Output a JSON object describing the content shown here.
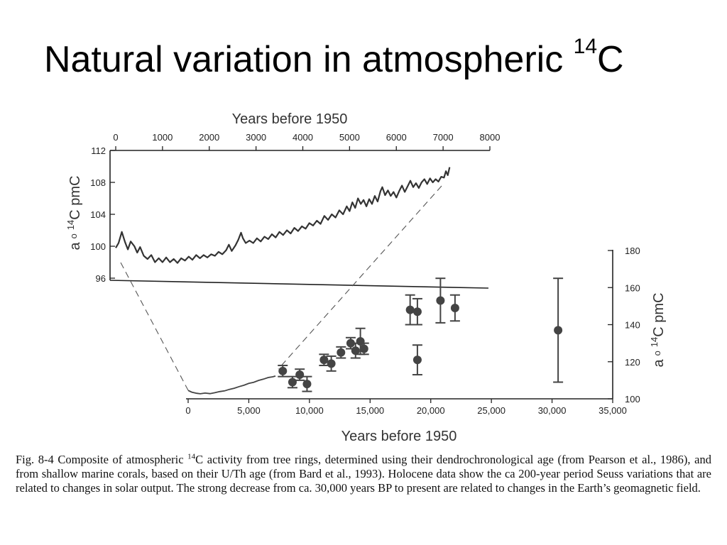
{
  "title": {
    "text": "Natural variation in atmospheric ",
    "sup": "14",
    "suffix": "C"
  },
  "caption": {
    "part1": "Fig. 8-4   Composite of atmospheric ",
    "sup": "14",
    "part2": "C activity from tree rings, determined using their dendrochronological age (from Pearson et al., 1986), and from shallow marine corals, based on their U/Th age (from Bard et al., 1993). Holocene data show the ca 200-year period Seuss variations that are related to changes in solar output. The strong decrease from ca. 30,000 years BP to present are related to changes in the Earth’s geomagnetic field."
  },
  "chart_data": [
    {
      "type": "line",
      "xlabel": "Years before 1950",
      "ylabel_parts": {
        "a": "a",
        "o": "o",
        "sup": "14",
        "rest": "C pmC"
      },
      "xlim": [
        0,
        8000
      ],
      "ylim": [
        96,
        112
      ],
      "x_ticks": [
        0,
        1000,
        2000,
        3000,
        4000,
        5000,
        6000,
        7000,
        8000
      ],
      "x_tick_labels": [
        "0",
        "1000",
        "2000",
        "3000",
        "4000",
        "5000",
        "6000",
        "7000",
        "8000"
      ],
      "y_ticks": [
        96,
        100,
        104,
        108,
        112
      ],
      "y_tick_labels": [
        "96",
        "100",
        "104",
        "108",
        "112"
      ],
      "series": [
        {
          "color": "#333333",
          "points": [
            [
              0,
              99.8
            ],
            [
              60,
              100.4
            ],
            [
              130,
              101.8
            ],
            [
              200,
              100.5
            ],
            [
              260,
              99.6
            ],
            [
              320,
              100.6
            ],
            [
              400,
              100.0
            ],
            [
              460,
              99.2
            ],
            [
              520,
              99.9
            ],
            [
              600,
              98.8
            ],
            [
              680,
              98.4
            ],
            [
              760,
              98.9
            ],
            [
              840,
              98.0
            ],
            [
              920,
              98.5
            ],
            [
              1000,
              98.0
            ],
            [
              1080,
              98.6
            ],
            [
              1160,
              98.0
            ],
            [
              1240,
              98.4
            ],
            [
              1320,
              97.9
            ],
            [
              1400,
              98.5
            ],
            [
              1480,
              98.2
            ],
            [
              1560,
              98.7
            ],
            [
              1640,
              98.3
            ],
            [
              1720,
              98.9
            ],
            [
              1800,
              98.5
            ],
            [
              1880,
              98.9
            ],
            [
              1960,
              98.6
            ],
            [
              2040,
              99.0
            ],
            [
              2120,
              98.8
            ],
            [
              2200,
              99.3
            ],
            [
              2280,
              99.0
            ],
            [
              2360,
              99.5
            ],
            [
              2420,
              100.2
            ],
            [
              2480,
              99.4
            ],
            [
              2560,
              100.1
            ],
            [
              2620,
              100.8
            ],
            [
              2680,
              101.7
            ],
            [
              2720,
              101.0
            ],
            [
              2780,
              100.4
            ],
            [
              2860,
              100.7
            ],
            [
              2940,
              100.4
            ],
            [
              3020,
              101.0
            ],
            [
              3100,
              100.6
            ],
            [
              3180,
              101.2
            ],
            [
              3260,
              100.9
            ],
            [
              3340,
              101.5
            ],
            [
              3420,
              101.1
            ],
            [
              3500,
              101.8
            ],
            [
              3580,
              101.4
            ],
            [
              3660,
              102.0
            ],
            [
              3740,
              101.6
            ],
            [
              3820,
              102.3
            ],
            [
              3900,
              101.9
            ],
            [
              3980,
              102.5
            ],
            [
              4060,
              102.2
            ],
            [
              4140,
              102.9
            ],
            [
              4220,
              102.6
            ],
            [
              4300,
              103.2
            ],
            [
              4380,
              102.8
            ],
            [
              4460,
              103.8
            ],
            [
              4540,
              103.3
            ],
            [
              4620,
              104.0
            ],
            [
              4700,
              103.6
            ],
            [
              4780,
              104.5
            ],
            [
              4860,
              104.0
            ],
            [
              4940,
              105.0
            ],
            [
              5000,
              104.4
            ],
            [
              5060,
              105.5
            ],
            [
              5120,
              104.8
            ],
            [
              5180,
              106.0
            ],
            [
              5240,
              105.3
            ],
            [
              5300,
              105.8
            ],
            [
              5360,
              105.0
            ],
            [
              5420,
              105.9
            ],
            [
              5480,
              105.3
            ],
            [
              5540,
              106.3
            ],
            [
              5600,
              105.6
            ],
            [
              5660,
              106.9
            ],
            [
              5700,
              107.4
            ],
            [
              5760,
              106.4
            ],
            [
              5820,
              107.0
            ],
            [
              5880,
              106.3
            ],
            [
              5940,
              106.8
            ],
            [
              6000,
              106.1
            ],
            [
              6060,
              106.9
            ],
            [
              6120,
              107.6
            ],
            [
              6180,
              106.8
            ],
            [
              6240,
              107.5
            ],
            [
              6300,
              108.2
            ],
            [
              6360,
              107.4
            ],
            [
              6420,
              107.9
            ],
            [
              6480,
              107.3
            ],
            [
              6540,
              108.0
            ],
            [
              6600,
              108.4
            ],
            [
              6660,
              107.8
            ],
            [
              6720,
              108.5
            ],
            [
              6780,
              108.0
            ],
            [
              6840,
              108.4
            ],
            [
              6900,
              108.1
            ],
            [
              6960,
              108.7
            ],
            [
              7020,
              108.6
            ],
            [
              7060,
              109.4
            ],
            [
              7100,
              108.9
            ],
            [
              7140,
              109.9
            ]
          ]
        }
      ]
    },
    {
      "type": "scatter",
      "xlabel": "Years before 1950",
      "ylabel_parts": {
        "a": "a",
        "o": "o",
        "sup": "14",
        "rest": "C pmC"
      },
      "xlim": [
        0,
        35000
      ],
      "ylim": [
        100,
        180
      ],
      "x_ticks": [
        0,
        5000,
        10000,
        15000,
        20000,
        25000,
        30000,
        35000
      ],
      "x_tick_labels": [
        "0",
        "5,000",
        "10,000",
        "15,000",
        "20,000",
        "25,000",
        "30,000",
        "35,000"
      ],
      "y_ticks": [
        100,
        120,
        140,
        160,
        180
      ],
      "y_tick_labels": [
        "100",
        "120",
        "140",
        "160",
        "180"
      ],
      "series": [
        {
          "color": "#444444",
          "points": [
            {
              "x": 7800,
              "y": 115,
              "err": 3
            },
            {
              "x": 8600,
              "y": 109,
              "err": 3
            },
            {
              "x": 9200,
              "y": 113,
              "err": 3
            },
            {
              "x": 9800,
              "y": 108,
              "err": 4
            },
            {
              "x": 11200,
              "y": 121,
              "err": 3
            },
            {
              "x": 11800,
              "y": 119,
              "err": 4
            },
            {
              "x": 12600,
              "y": 125,
              "err": 3
            },
            {
              "x": 13400,
              "y": 130,
              "err": 3
            },
            {
              "x": 13800,
              "y": 126,
              "err": 4
            },
            {
              "x": 14200,
              "y": 131,
              "err": 7
            },
            {
              "x": 14500,
              "y": 127,
              "err": 3
            },
            {
              "x": 18300,
              "y": 148,
              "err": 8
            },
            {
              "x": 18900,
              "y": 147,
              "err": 7
            },
            {
              "x": 18900,
              "y": 121,
              "err": 8
            },
            {
              "x": 20800,
              "y": 153,
              "err": 12
            },
            {
              "x": 22000,
              "y": 149,
              "err": 7
            },
            {
              "x": 30500,
              "y": 137,
              "err": 28
            }
          ]
        },
        {
          "color": "#444444",
          "line": [
            [
              0,
              104.5
            ],
            [
              300,
              103.6
            ],
            [
              700,
              103.0
            ],
            [
              1000,
              102.7
            ],
            [
              1400,
              103.1
            ],
            [
              1800,
              102.8
            ],
            [
              2200,
              103.3
            ],
            [
              2600,
              103.9
            ],
            [
              3000,
              104.3
            ],
            [
              3400,
              105.1
            ],
            [
              3800,
              105.7
            ],
            [
              4200,
              106.6
            ],
            [
              4600,
              107.3
            ],
            [
              5000,
              108.3
            ],
            [
              5400,
              108.9
            ],
            [
              5800,
              109.9
            ],
            [
              6200,
              110.6
            ],
            [
              6600,
              111.5
            ],
            [
              7000,
              111.9
            ],
            [
              7200,
              112.3
            ]
          ]
        }
      ]
    }
  ]
}
